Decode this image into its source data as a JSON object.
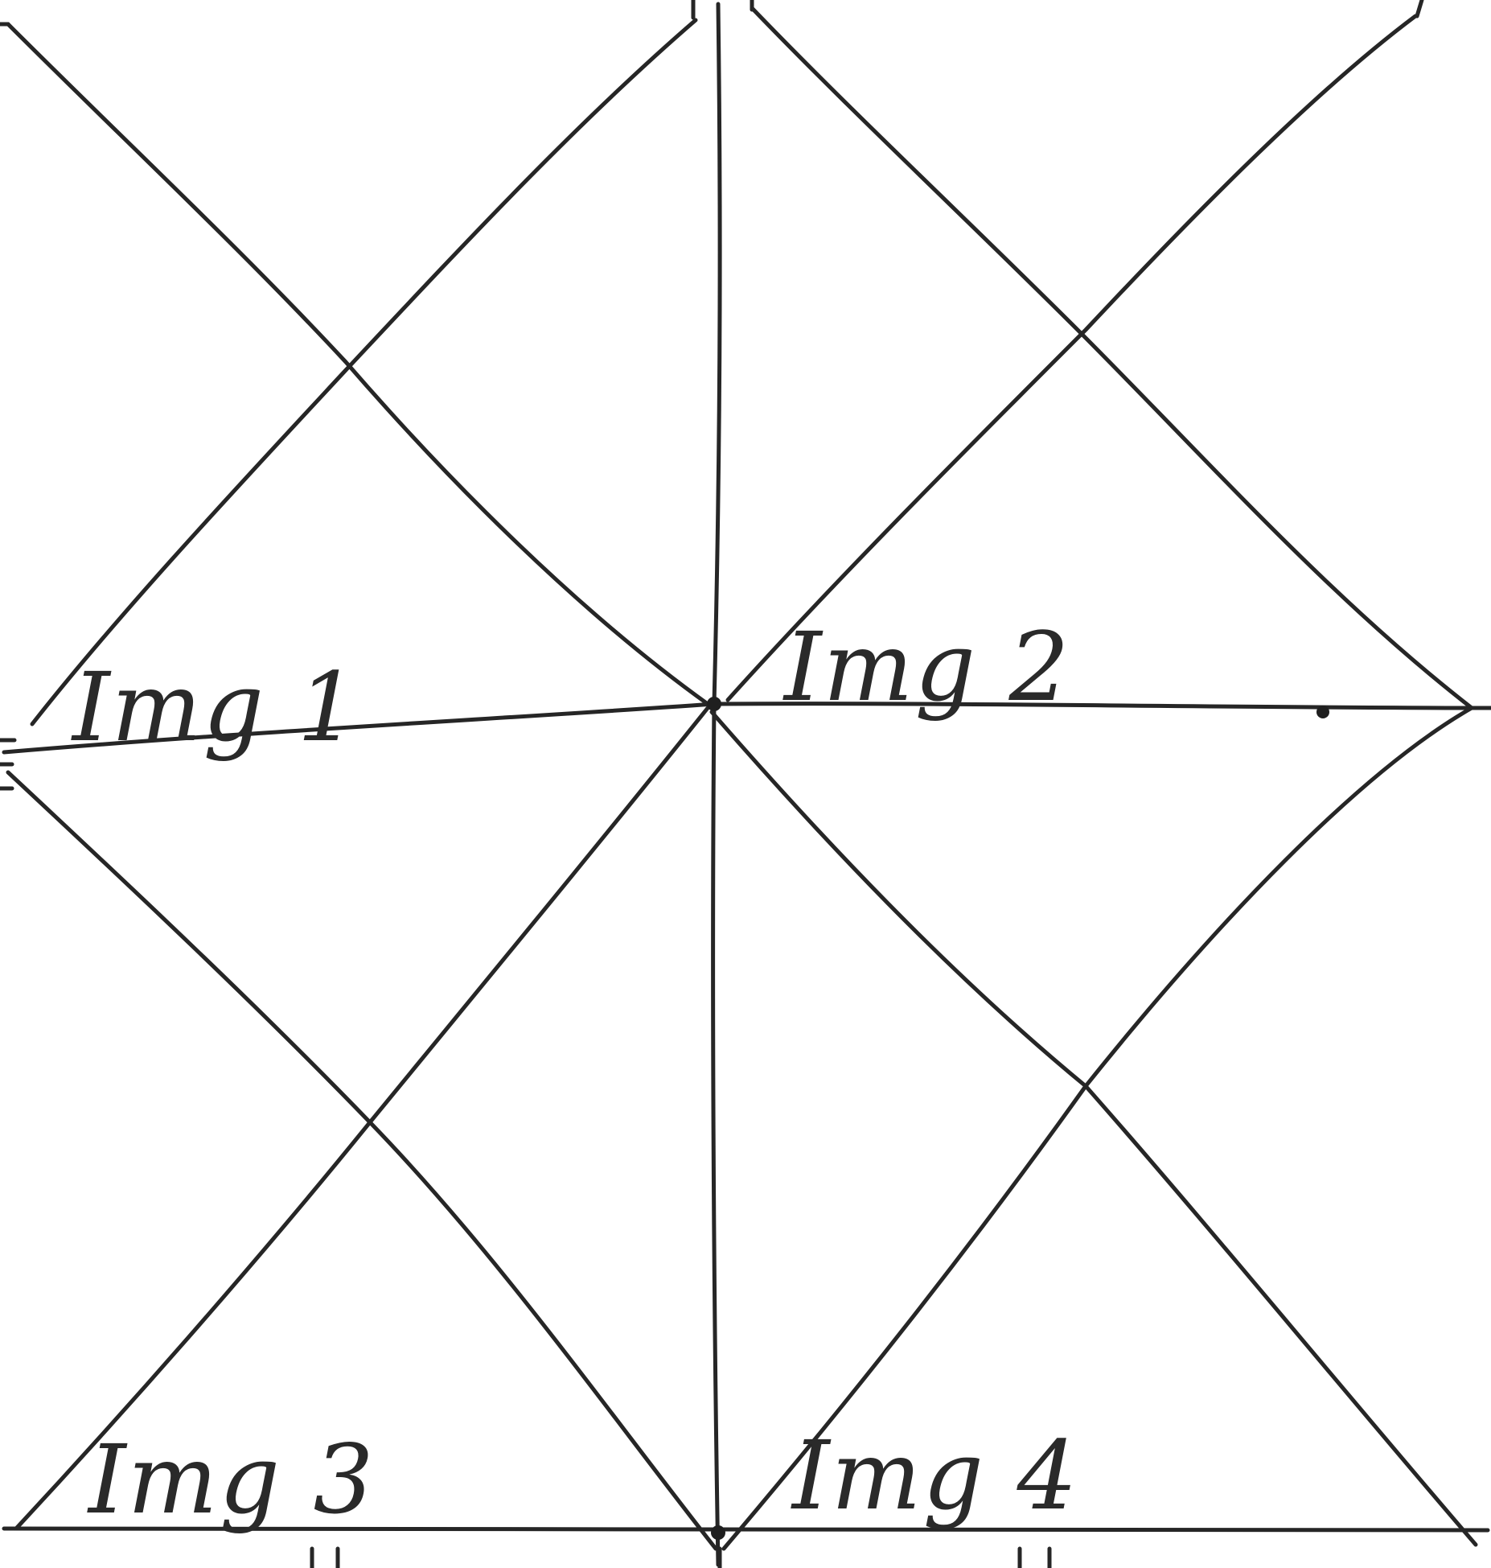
{
  "labels": {
    "img1": "Img 1",
    "img2": "Img 2",
    "img3": "Img 3",
    "img4": "Img 4"
  },
  "colors": {
    "ink": "#262626",
    "paper": "#ffffff"
  }
}
